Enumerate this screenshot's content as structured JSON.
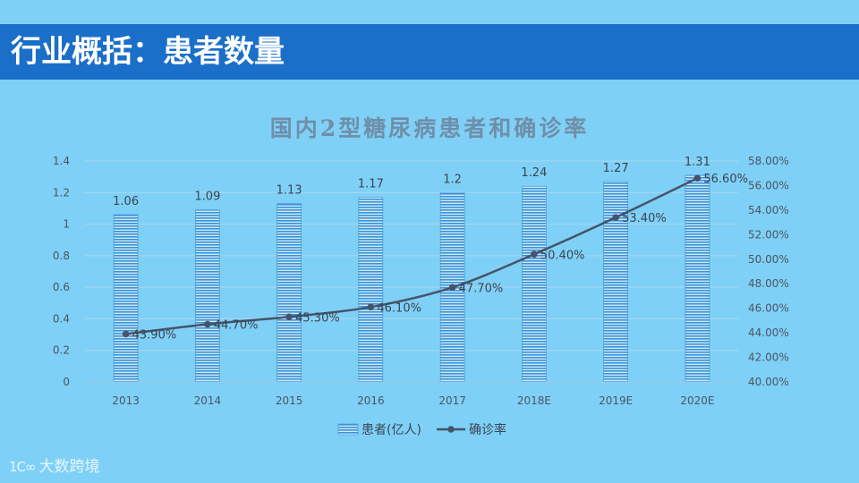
{
  "header": {
    "title": "行业概括：患者数量"
  },
  "watermark": {
    "logo": "1C∞",
    "text": "大数跨境"
  },
  "chart_data": {
    "type": "bar+line",
    "title": "国内2型糖尿病患者和确诊率",
    "categories": [
      "2013",
      "2014",
      "2015",
      "2016",
      "2017",
      "2018E",
      "2019E",
      "2020E"
    ],
    "series": [
      {
        "name": "患者(亿人)",
        "type": "bar",
        "axis": "left",
        "values": [
          1.06,
          1.09,
          1.13,
          1.17,
          1.2,
          1.24,
          1.27,
          1.31
        ],
        "labels": [
          "1.06",
          "1.09",
          "1.13",
          "1.17",
          "1.2",
          "1.24",
          "1.27",
          "1.31"
        ],
        "color": "#3a93d6"
      },
      {
        "name": "确诊率",
        "type": "line",
        "axis": "right",
        "values": [
          43.9,
          44.7,
          45.3,
          46.1,
          47.7,
          50.4,
          53.4,
          56.6
        ],
        "labels": [
          "43.90%",
          "44.70%",
          "45.30%",
          "46.10%",
          "47.70%",
          "50.40%",
          "53.40%",
          "56.60%"
        ],
        "color": "#44546a"
      }
    ],
    "y_left": {
      "range": [
        0,
        1.4
      ],
      "ticks": [
        0,
        0.2,
        0.4,
        0.6,
        0.8,
        1,
        1.2,
        1.4
      ],
      "tick_labels": [
        "0",
        "0.2",
        "0.4",
        "0.6",
        "0.8",
        "1",
        "1.2",
        "1.4"
      ]
    },
    "y_right": {
      "range": [
        40,
        58
      ],
      "ticks": [
        40,
        42,
        44,
        46,
        48,
        50,
        52,
        54,
        56,
        58
      ],
      "tick_labels": [
        "40.00%",
        "42.00%",
        "44.00%",
        "46.00%",
        "48.00%",
        "50.00%",
        "52.00%",
        "54.00%",
        "56.00%",
        "58.00%"
      ]
    },
    "grid": true,
    "legend": "bottom"
  }
}
